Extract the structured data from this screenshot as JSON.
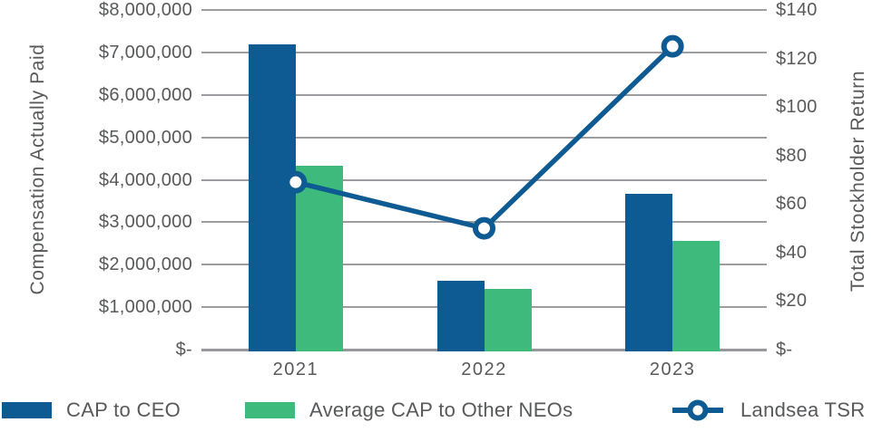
{
  "chart_data": {
    "type": "bar",
    "subtype": "grouped-bar-with-line-overlay",
    "title": "",
    "categories": [
      "2021",
      "2022",
      "2023"
    ],
    "bar_series": [
      {
        "name": "CAP to CEO",
        "color": "#0E5A92",
        "axis": "left",
        "values": [
          7200000,
          1630000,
          3670000
        ]
      },
      {
        "name": "Average CAP to Other NEOs",
        "color": "#3DBA7C",
        "axis": "left",
        "values": [
          4330000,
          1440000,
          2550000
        ]
      }
    ],
    "line_series": {
      "name": "Landsea TSR",
      "color": "#0E5A92",
      "axis": "right",
      "marker": "open-circle",
      "values": [
        69,
        50,
        125
      ]
    },
    "left_axis": {
      "label": "Compensation Actually Paid",
      "min": 0,
      "max": 8000000,
      "tick_step": 1000000,
      "ticks": [
        "$8,000,000",
        "$7,000,000",
        "$6,000,000",
        "$5,000,000",
        "$4,000,000",
        "$3,000,000",
        "$2,000,000",
        "$1,000,000",
        "$-"
      ]
    },
    "right_axis": {
      "label": "Total Stockholder Return",
      "min": 0,
      "max": 140,
      "tick_step": 20,
      "ticks": [
        "$140",
        "$120",
        "$100",
        "$80",
        "$60",
        "$40",
        "$20",
        "$-"
      ]
    },
    "grid": "horizontal",
    "legend_position": "bottom"
  },
  "colors": {
    "bar_blue": "#0E5A92",
    "bar_green": "#3DBA7C",
    "line_blue": "#0E5A92",
    "gridline": "#9C9DA0",
    "axis_text": "#58595B",
    "background": "#FFFFFF"
  }
}
